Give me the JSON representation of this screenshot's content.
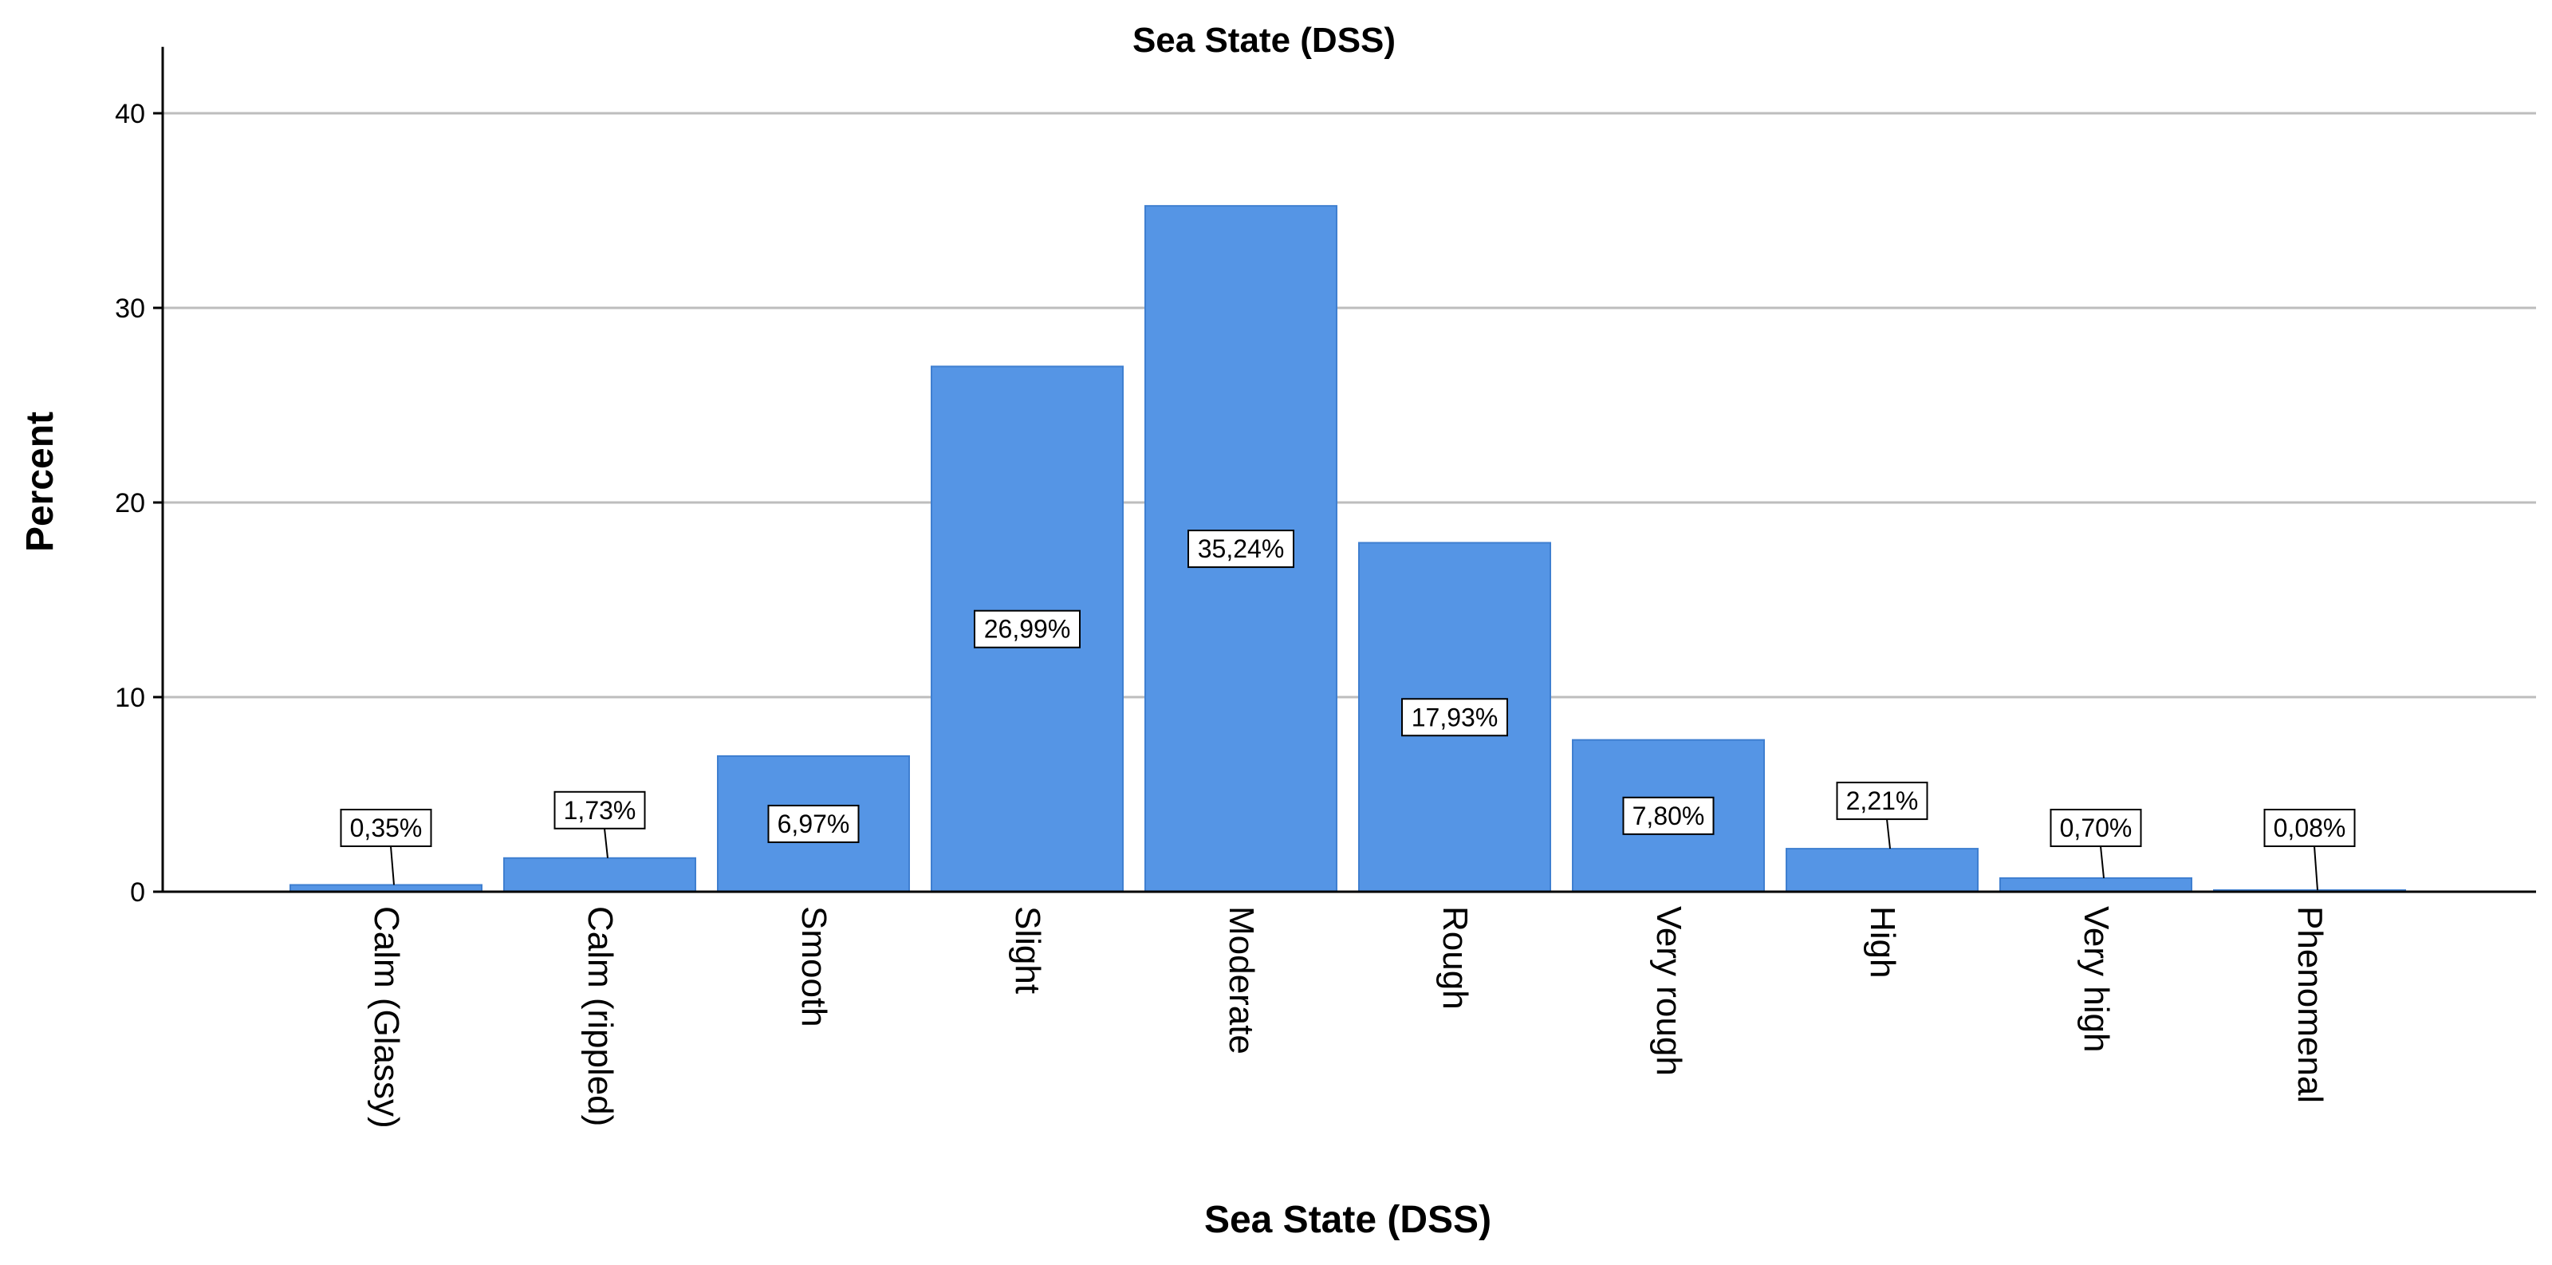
{
  "chart_data": {
    "type": "bar",
    "title": "Sea State (DSS)",
    "xlabel": "Sea State (DSS)",
    "ylabel": "Percent",
    "categories": [
      "Calm (Glassy)",
      "Calm (rippled)",
      "Smooth",
      "Slight",
      "Moderate",
      "Rough",
      "Very rough",
      "High",
      "Very high",
      "Phenomenal"
    ],
    "values": [
      0.35,
      1.73,
      6.97,
      26.99,
      35.24,
      17.93,
      7.8,
      2.21,
      0.7,
      0.08
    ],
    "data_labels": [
      "0,35%",
      "1,73%",
      "6,97%",
      "26,99%",
      "35,24%",
      "17,93%",
      "7,80%",
      "2,21%",
      "0,70%",
      "0,08%"
    ],
    "ylim": [
      0,
      43
    ],
    "yticks": [
      0,
      10,
      20,
      30,
      40
    ],
    "grid": true,
    "legend": "none",
    "colors": {
      "bar_fill": "#5595e5",
      "bar_stroke": "#3f7fd0",
      "gridline": "#bdbdbd",
      "axis": "#000000"
    }
  }
}
